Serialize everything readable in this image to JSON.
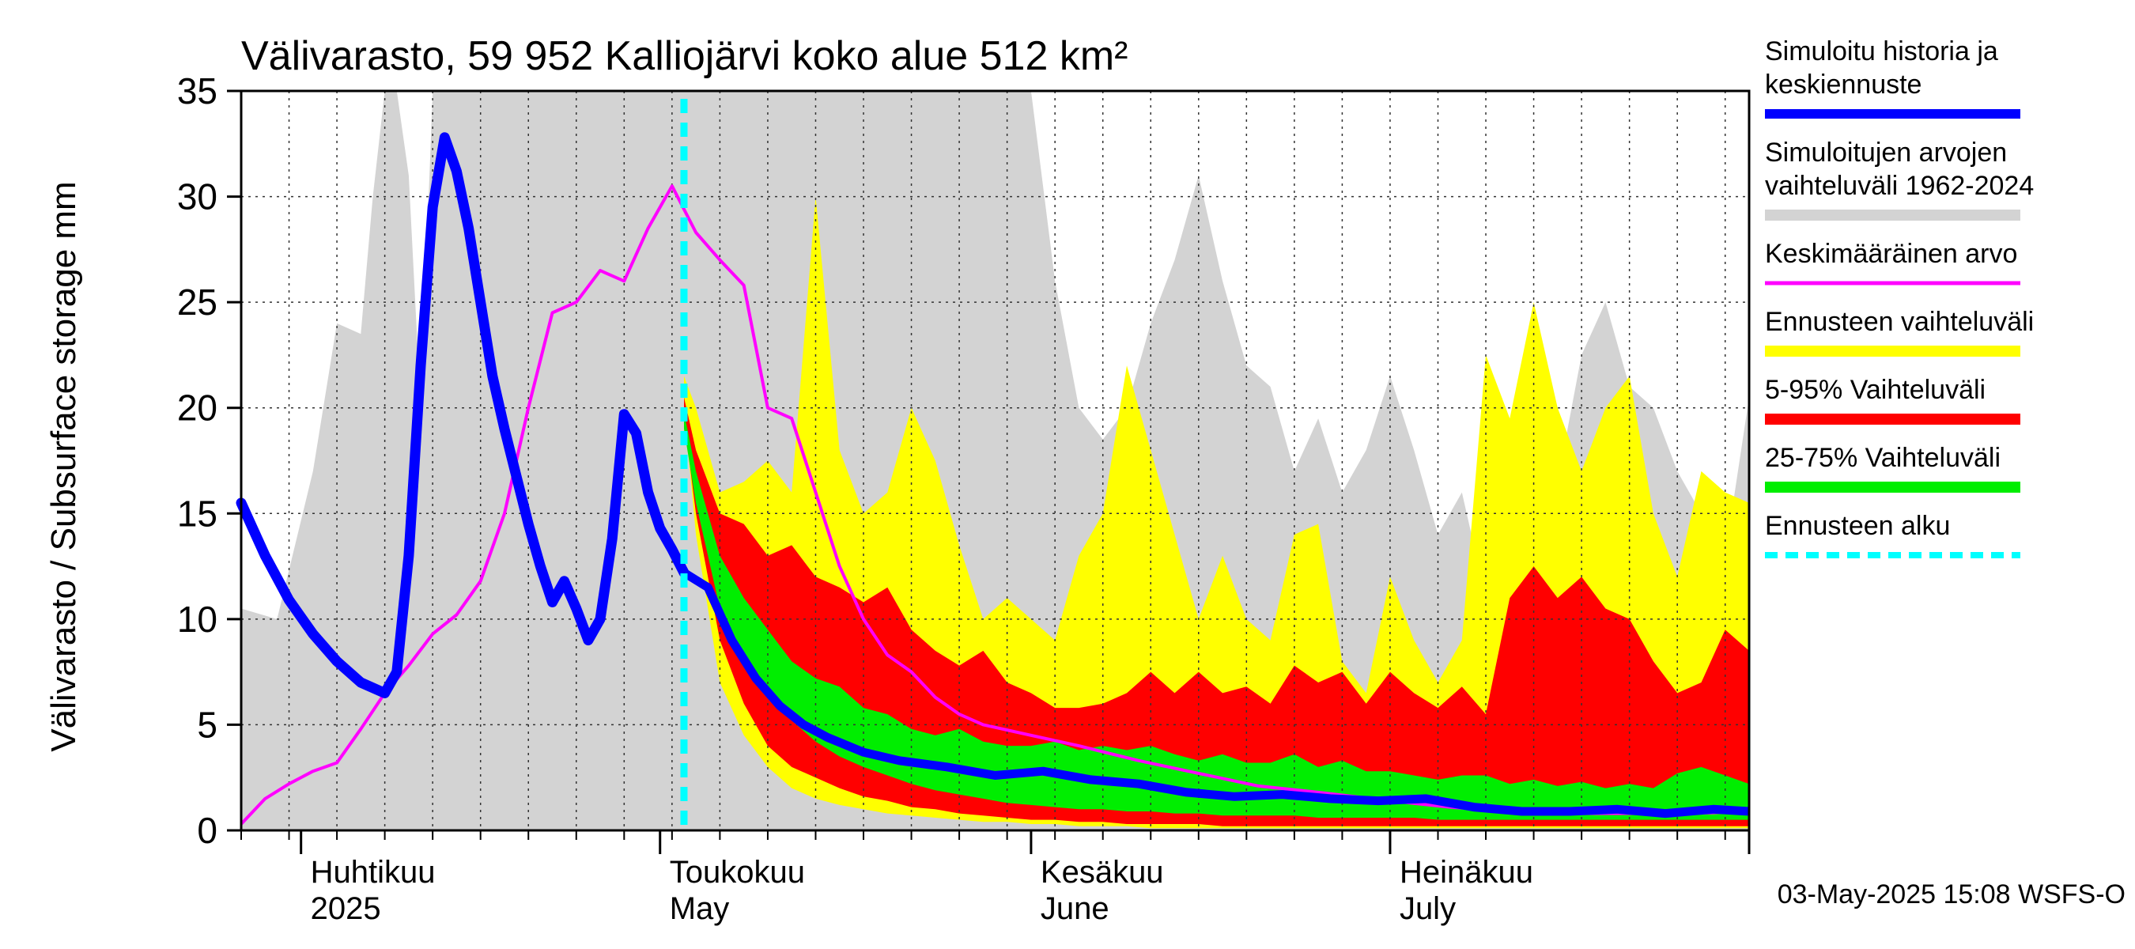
{
  "chart_data": {
    "type": "area",
    "title": "Välivarasto, 59 952 Kalliojärvi koko alue 512 km²",
    "ylabel": "Välivarasto / Subsurface storage  mm",
    "ylim": [
      0,
      35
    ],
    "yticks": [
      0,
      5,
      10,
      15,
      20,
      25,
      30,
      35
    ],
    "xlim": [
      "2025-03-27",
      "2025-07-31"
    ],
    "month_labels": [
      {
        "date": "2025-04-01",
        "line1": "Huhtikuu",
        "line2": "2025"
      },
      {
        "date": "2025-05-01",
        "line1": "Toukokuu",
        "line2": "May"
      },
      {
        "date": "2025-06-01",
        "line1": "Kesäkuu",
        "line2": "June"
      },
      {
        "date": "2025-07-01",
        "line1": "Heinäkuu",
        "line2": "July"
      }
    ],
    "grid": true,
    "legend_position": "right",
    "forecast_start": "2025-05-03",
    "timestamp": "03-May-2025 15:08 WSFS-O",
    "colors": {
      "history": "#0000ff",
      "range_hist": "#d3d3d3",
      "mean": "#ff00ff",
      "forecast_range": "#ffff00",
      "p5_95": "#ff0000",
      "p25_75": "#00ee00",
      "forecast_start": "#00ffff"
    },
    "legend": [
      {
        "key": "history",
        "label1": "Simuloitu historia ja",
        "label2": "keskiennuste",
        "style": "line",
        "width": 12
      },
      {
        "key": "range_hist",
        "label1": "Simuloitujen arvojen",
        "label2": "vaihteluväli 1962-2024",
        "style": "line",
        "width": 14
      },
      {
        "key": "mean",
        "label1": "Keskimääräinen arvo",
        "label2": "",
        "style": "line",
        "width": 5
      },
      {
        "key": "forecast_range",
        "label1": "Ennusteen vaihteluväli",
        "label2": "",
        "style": "line",
        "width": 14
      },
      {
        "key": "p5_95",
        "label1": "5-95% Vaihteluväli",
        "label2": "",
        "style": "line",
        "width": 14
      },
      {
        "key": "p25_75",
        "label1": "25-75% Vaihteluväli",
        "label2": "",
        "style": "line",
        "width": 14
      },
      {
        "key": "forecast_start",
        "label1": "Ennusteen alku",
        "label2": "",
        "style": "dash",
        "width": 8
      }
    ],
    "series": {
      "history": {
        "x": [
          "2025-03-27",
          "2025-03-29",
          "2025-03-31",
          "2025-04-02",
          "2025-04-04",
          "2025-04-06",
          "2025-04-08",
          "2025-04-09",
          "2025-04-10",
          "2025-04-11",
          "2025-04-12",
          "2025-04-13",
          "2025-04-14",
          "2025-04-15",
          "2025-04-16",
          "2025-04-17",
          "2025-04-18",
          "2025-04-20",
          "2025-04-21",
          "2025-04-22",
          "2025-04-23",
          "2025-04-24",
          "2025-04-25",
          "2025-04-26",
          "2025-04-27",
          "2025-04-28",
          "2025-04-29",
          "2025-04-30",
          "2025-05-01",
          "2025-05-02",
          "2025-05-03"
        ],
        "y": [
          15.5,
          13.0,
          10.9,
          9.3,
          8.0,
          7.0,
          6.5,
          7.5,
          13.0,
          22.0,
          29.5,
          32.8,
          31.2,
          28.5,
          25.0,
          21.5,
          19.0,
          14.5,
          12.5,
          10.8,
          11.8,
          10.5,
          9.0,
          10.0,
          13.8,
          19.7,
          18.8,
          16.0,
          14.3,
          13.3,
          12.2
        ]
      },
      "forecast_median": {
        "x": [
          "2025-05-03",
          "2025-05-05",
          "2025-05-07",
          "2025-05-09",
          "2025-05-11",
          "2025-05-13",
          "2025-05-15",
          "2025-05-18",
          "2025-05-21",
          "2025-05-25",
          "2025-05-29",
          "2025-06-02",
          "2025-06-06",
          "2025-06-10",
          "2025-06-14",
          "2025-06-18",
          "2025-06-22",
          "2025-06-26",
          "2025-06-30",
          "2025-07-04",
          "2025-07-08",
          "2025-07-12",
          "2025-07-16",
          "2025-07-20",
          "2025-07-24",
          "2025-07-28",
          "2025-07-31"
        ],
        "y": [
          12.2,
          11.5,
          9.0,
          7.2,
          5.9,
          5.0,
          4.4,
          3.7,
          3.3,
          3.0,
          2.6,
          2.8,
          2.4,
          2.2,
          1.8,
          1.6,
          1.7,
          1.5,
          1.4,
          1.5,
          1.1,
          0.9,
          0.9,
          1.0,
          0.8,
          1.0,
          0.9
        ]
      },
      "mean": {
        "x": [
          "2025-03-27",
          "2025-03-29",
          "2025-03-31",
          "2025-04-02",
          "2025-04-04",
          "2025-04-06",
          "2025-04-08",
          "2025-04-10",
          "2025-04-12",
          "2025-04-14",
          "2025-04-16",
          "2025-04-18",
          "2025-04-20",
          "2025-04-22",
          "2025-04-24",
          "2025-04-26",
          "2025-04-28",
          "2025-04-30",
          "2025-05-02",
          "2025-05-04",
          "2025-05-06",
          "2025-05-08",
          "2025-05-10",
          "2025-05-12",
          "2025-05-14",
          "2025-05-16",
          "2025-05-18",
          "2025-05-20",
          "2025-05-22",
          "2025-05-24",
          "2025-05-26",
          "2025-05-28",
          "2025-06-01",
          "2025-06-05",
          "2025-06-10",
          "2025-06-15",
          "2025-06-20",
          "2025-06-25",
          "2025-07-01",
          "2025-07-06",
          "2025-07-11",
          "2025-07-16",
          "2025-07-21",
          "2025-07-26",
          "2025-07-31"
        ],
        "y": [
          0.3,
          1.5,
          2.2,
          2.8,
          3.2,
          4.8,
          6.5,
          7.8,
          9.3,
          10.2,
          11.8,
          15.0,
          20.0,
          24.5,
          25.0,
          26.5,
          26.0,
          28.5,
          30.5,
          28.3,
          27.0,
          25.8,
          20.0,
          19.5,
          16.0,
          12.5,
          10.0,
          8.3,
          7.5,
          6.3,
          5.5,
          5.0,
          4.5,
          4.0,
          3.3,
          2.7,
          2.1,
          1.8,
          1.4,
          1.1,
          0.9,
          0.8,
          0.8,
          0.8,
          0.9
        ]
      },
      "range_hist_band": {
        "x": [
          "2025-03-27",
          "2025-03-30",
          "2025-04-02",
          "2025-04-04",
          "2025-04-06",
          "2025-04-07",
          "2025-04-08",
          "2025-04-09",
          "2025-04-10",
          "2025-04-11",
          "2025-04-12",
          "2025-04-14",
          "2025-04-18",
          "2025-04-22",
          "2025-04-26",
          "2025-04-30",
          "2025-05-02",
          "2025-05-04",
          "2025-05-06",
          "2025-05-08",
          "2025-05-10",
          "2025-05-12",
          "2025-05-14",
          "2025-05-16",
          "2025-05-18",
          "2025-05-20",
          "2025-05-22",
          "2025-05-24",
          "2025-05-26",
          "2025-05-28",
          "2025-05-30",
          "2025-06-01",
          "2025-06-03",
          "2025-06-05",
          "2025-06-07",
          "2025-06-09",
          "2025-06-11",
          "2025-06-13",
          "2025-06-15",
          "2025-06-17",
          "2025-06-19",
          "2025-06-21",
          "2025-06-23",
          "2025-06-25",
          "2025-06-27",
          "2025-06-29",
          "2025-07-01",
          "2025-07-03",
          "2025-07-05",
          "2025-07-07",
          "2025-07-09",
          "2025-07-11",
          "2025-07-13",
          "2025-07-15",
          "2025-07-17",
          "2025-07-19",
          "2025-07-21",
          "2025-07-23",
          "2025-07-25",
          "2025-07-27",
          "2025-07-29",
          "2025-07-31"
        ],
        "upper": [
          10.5,
          10.0,
          17.0,
          24.0,
          23.5,
          30.0,
          35.0,
          35.0,
          31.0,
          20.0,
          35.0,
          35.0,
          35.0,
          35.0,
          35.0,
          35.0,
          35.0,
          35.0,
          35.0,
          35.0,
          35.0,
          35.0,
          35.0,
          35.0,
          35.0,
          35.0,
          35.0,
          35.0,
          35.0,
          35.0,
          35.0,
          35.0,
          26.0,
          20.0,
          18.5,
          20.0,
          24.0,
          27.0,
          31.0,
          26.0,
          22.0,
          21.0,
          17.0,
          19.5,
          16.0,
          18.0,
          21.5,
          18.0,
          14.0,
          16.0,
          11.0,
          15.0,
          19.0,
          16.5,
          22.5,
          25.0,
          21.0,
          20.0,
          17.0,
          15.0,
          13.0,
          20.5
        ],
        "lower": [
          0,
          0,
          0,
          0,
          0,
          0,
          0,
          0,
          0,
          0,
          0,
          0,
          0,
          0,
          0,
          0,
          0,
          0,
          0,
          0,
          0,
          0,
          0,
          0,
          0,
          0,
          0,
          0,
          0,
          0,
          0,
          0,
          0,
          0,
          0,
          0,
          0,
          0,
          0,
          0,
          0,
          0,
          0,
          0,
          0,
          0,
          0,
          0,
          0,
          0,
          0,
          0,
          0,
          0,
          0,
          0,
          0,
          0,
          0,
          0,
          0,
          0
        ]
      },
      "forecast_range_band": {
        "x": [
          "2025-05-03",
          "2025-05-04",
          "2025-05-06",
          "2025-05-08",
          "2025-05-10",
          "2025-05-12",
          "2025-05-14",
          "2025-05-16",
          "2025-05-18",
          "2025-05-20",
          "2025-05-22",
          "2025-05-24",
          "2025-05-26",
          "2025-05-28",
          "2025-05-30",
          "2025-06-01",
          "2025-06-03",
          "2025-06-05",
          "2025-06-07",
          "2025-06-09",
          "2025-06-11",
          "2025-06-13",
          "2025-06-15",
          "2025-06-17",
          "2025-06-19",
          "2025-06-21",
          "2025-06-23",
          "2025-06-25",
          "2025-06-27",
          "2025-06-29",
          "2025-07-01",
          "2025-07-03",
          "2025-07-05",
          "2025-07-07",
          "2025-07-09",
          "2025-07-11",
          "2025-07-13",
          "2025-07-15",
          "2025-07-17",
          "2025-07-19",
          "2025-07-21",
          "2025-07-23",
          "2025-07-25",
          "2025-07-27",
          "2025-07-29",
          "2025-07-31"
        ],
        "upper": [
          21.5,
          20.0,
          16.0,
          16.5,
          17.5,
          16.0,
          30.0,
          18.0,
          15.0,
          16.0,
          20.0,
          17.5,
          13.5,
          10.0,
          11.0,
          10.0,
          9.0,
          13.0,
          15.0,
          22.0,
          18.0,
          14.0,
          10.0,
          13.0,
          10.0,
          9.0,
          14.0,
          14.5,
          8.0,
          6.5,
          12.0,
          9.0,
          7.0,
          9.0,
          22.5,
          19.5,
          25.0,
          20.0,
          17.0,
          20.0,
          21.5,
          15.0,
          12.0,
          17.0,
          16.0,
          15.5
        ],
        "lower": [
          20.0,
          14.0,
          7.0,
          4.5,
          3.0,
          2.0,
          1.5,
          1.2,
          1.0,
          0.8,
          0.7,
          0.6,
          0.5,
          0.4,
          0.4,
          0.3,
          0.3,
          0.2,
          0.2,
          0.2,
          0.1,
          0.1,
          0.1,
          0.1,
          0.1,
          0.1,
          0.1,
          0.1,
          0.1,
          0.1,
          0.1,
          0.1,
          0.1,
          0.1,
          0.1,
          0.1,
          0.1,
          0.1,
          0.1,
          0.1,
          0.1,
          0.1,
          0.1,
          0.1,
          0.1,
          0.1
        ]
      },
      "p5_95_band": {
        "x": [
          "2025-05-03",
          "2025-05-04",
          "2025-05-06",
          "2025-05-08",
          "2025-05-10",
          "2025-05-12",
          "2025-05-14",
          "2025-05-16",
          "2025-05-18",
          "2025-05-20",
          "2025-05-22",
          "2025-05-24",
          "2025-05-26",
          "2025-05-28",
          "2025-05-30",
          "2025-06-01",
          "2025-06-03",
          "2025-06-05",
          "2025-06-07",
          "2025-06-09",
          "2025-06-11",
          "2025-06-13",
          "2025-06-15",
          "2025-06-17",
          "2025-06-19",
          "2025-06-21",
          "2025-06-23",
          "2025-06-25",
          "2025-06-27",
          "2025-06-29",
          "2025-07-01",
          "2025-07-03",
          "2025-07-05",
          "2025-07-07",
          "2025-07-09",
          "2025-07-11",
          "2025-07-13",
          "2025-07-15",
          "2025-07-17",
          "2025-07-19",
          "2025-07-21",
          "2025-07-23",
          "2025-07-25",
          "2025-07-27",
          "2025-07-29",
          "2025-07-31"
        ],
        "upper": [
          20.5,
          18.0,
          15.0,
          14.5,
          13.0,
          13.5,
          12.0,
          11.5,
          10.8,
          11.5,
          9.5,
          8.5,
          7.8,
          8.5,
          7.0,
          6.5,
          5.8,
          5.8,
          6.0,
          6.5,
          7.5,
          6.5,
          7.5,
          6.5,
          6.8,
          6.0,
          7.8,
          7.0,
          7.5,
          6.0,
          7.5,
          6.5,
          5.8,
          6.8,
          5.5,
          11.0,
          12.5,
          11.0,
          12.0,
          10.5,
          10.0,
          8.0,
          6.5,
          7.0,
          9.5,
          8.5
        ],
        "lower": [
          19.5,
          15.0,
          9.0,
          6.0,
          4.0,
          3.0,
          2.5,
          2.0,
          1.6,
          1.4,
          1.1,
          1.0,
          0.8,
          0.7,
          0.6,
          0.5,
          0.5,
          0.4,
          0.4,
          0.3,
          0.3,
          0.3,
          0.3,
          0.2,
          0.2,
          0.2,
          0.2,
          0.2,
          0.2,
          0.2,
          0.2,
          0.2,
          0.2,
          0.2,
          0.2,
          0.2,
          0.2,
          0.2,
          0.2,
          0.2,
          0.2,
          0.2,
          0.2,
          0.2,
          0.2,
          0.2
        ]
      },
      "p25_75_band": {
        "x": [
          "2025-05-03",
          "2025-05-04",
          "2025-05-06",
          "2025-05-08",
          "2025-05-10",
          "2025-05-12",
          "2025-05-14",
          "2025-05-16",
          "2025-05-18",
          "2025-05-20",
          "2025-05-22",
          "2025-05-24",
          "2025-05-26",
          "2025-05-28",
          "2025-05-30",
          "2025-06-01",
          "2025-06-03",
          "2025-06-05",
          "2025-06-07",
          "2025-06-09",
          "2025-06-11",
          "2025-06-13",
          "2025-06-15",
          "2025-06-17",
          "2025-06-19",
          "2025-06-21",
          "2025-06-23",
          "2025-06-25",
          "2025-06-27",
          "2025-06-29",
          "2025-07-01",
          "2025-07-03",
          "2025-07-05",
          "2025-07-07",
          "2025-07-09",
          "2025-07-11",
          "2025-07-13",
          "2025-07-15",
          "2025-07-17",
          "2025-07-19",
          "2025-07-21",
          "2025-07-23",
          "2025-07-25",
          "2025-07-27",
          "2025-07-29",
          "2025-07-31"
        ],
        "upper": [
          19.8,
          17.0,
          13.0,
          11.0,
          9.5,
          8.0,
          7.2,
          6.8,
          5.8,
          5.5,
          4.8,
          4.5,
          4.8,
          4.2,
          4.0,
          4.0,
          4.2,
          3.8,
          4.0,
          3.8,
          4.0,
          3.6,
          3.3,
          3.6,
          3.2,
          3.2,
          3.6,
          3.0,
          3.3,
          2.8,
          2.8,
          2.6,
          2.4,
          2.6,
          2.6,
          2.2,
          2.4,
          2.1,
          2.3,
          2.0,
          2.2,
          2.0,
          2.7,
          3.0,
          2.6,
          2.2
        ],
        "lower": [
          19.0,
          15.5,
          10.5,
          8.0,
          6.5,
          5.2,
          4.2,
          3.5,
          3.0,
          2.6,
          2.2,
          1.9,
          1.7,
          1.5,
          1.3,
          1.2,
          1.1,
          1.0,
          1.0,
          0.9,
          0.9,
          0.8,
          0.8,
          0.7,
          0.7,
          0.7,
          0.7,
          0.6,
          0.6,
          0.6,
          0.6,
          0.6,
          0.5,
          0.5,
          0.5,
          0.5,
          0.5,
          0.5,
          0.5,
          0.5,
          0.5,
          0.5,
          0.5,
          0.5,
          0.5,
          0.5
        ]
      }
    }
  }
}
